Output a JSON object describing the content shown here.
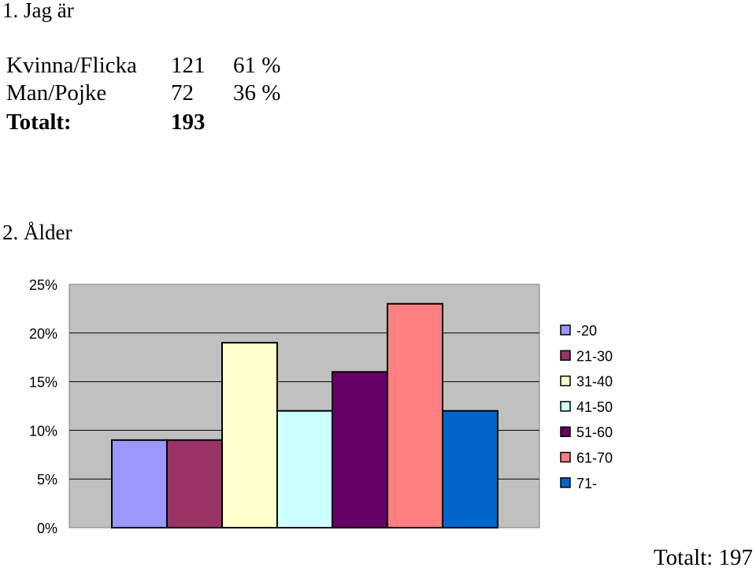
{
  "question1": {
    "title": "1. Jag är",
    "rows": [
      {
        "label": "Kvinna/Flicka",
        "count": "121",
        "percent": "61 %"
      },
      {
        "label": "Man/Pojke",
        "count": "72",
        "percent": "36 %"
      },
      {
        "label": "Totalt:",
        "count": "193",
        "percent": ""
      }
    ]
  },
  "question2": {
    "title": "2. Ålder",
    "total": "Totalt: 197"
  },
  "chart_data": {
    "type": "bar",
    "title": "",
    "xlabel": "",
    "ylabel": "",
    "ylim": [
      0,
      25
    ],
    "y_tick_labels": [
      "0%",
      "5%",
      "10%",
      "15%",
      "20%",
      "25%"
    ],
    "y_unit": "%",
    "grid": true,
    "plot_background": "#c0c0c0",
    "legend_position": "right",
    "series": [
      {
        "name": "-20",
        "value": 9,
        "color": "#9999ff"
      },
      {
        "name": "21-30",
        "value": 9,
        "color": "#993366"
      },
      {
        "name": "31-40",
        "value": 19,
        "color": "#ffffcc"
      },
      {
        "name": "41-50",
        "value": 12,
        "color": "#ccffff"
      },
      {
        "name": "51-60",
        "value": 16,
        "color": "#660066"
      },
      {
        "name": "61-70",
        "value": 23,
        "color": "#ff8080"
      },
      {
        "name": "71-",
        "value": 12,
        "color": "#0066cc"
      }
    ]
  }
}
